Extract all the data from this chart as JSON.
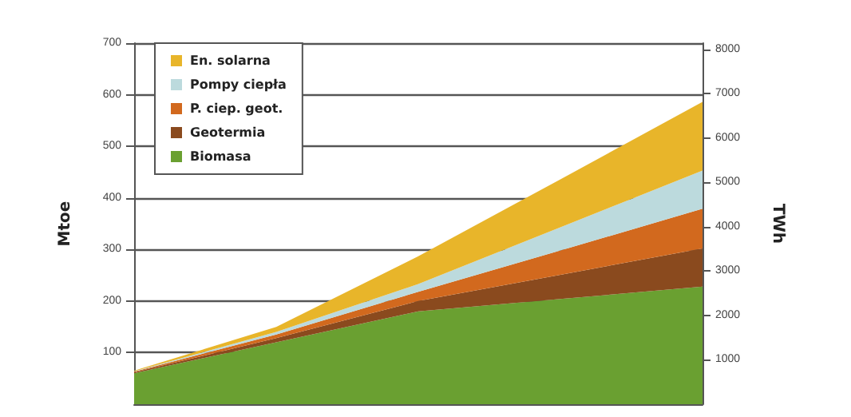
{
  "chart_data": {
    "type": "area",
    "stacked": true,
    "ylabel": "Mtoe",
    "y2label": "TWh",
    "categories": [
      null,
      null,
      null,
      null,
      null
    ],
    "series": [
      {
        "name": "Biomasa",
        "color": "#6aa031",
        "values": [
          60,
          120,
          180,
          204,
          228
        ]
      },
      {
        "name": "Geotermia",
        "color": "#8a4a1e",
        "values": [
          2,
          8,
          20,
          47,
          74
        ]
      },
      {
        "name": "P. ciep. geot.",
        "color": "#d2691e",
        "values": [
          1,
          7,
          18,
          47,
          77
        ]
      },
      {
        "name": "Pompy ciepła",
        "color": "#bcdadd",
        "values": [
          1,
          5,
          15,
          45,
          74
        ]
      },
      {
        "name": "En. solarna",
        "color": "#e8b52a",
        "values": [
          1,
          10,
          54,
          93,
          133
        ]
      }
    ],
    "ylim": [
      0,
      700
    ],
    "yticks": [
      100,
      200,
      300,
      400,
      500,
      600,
      700
    ],
    "y2lim": [
      0,
      8141
    ],
    "y2ticks": [
      1000,
      2000,
      3000,
      4000,
      5000,
      6000,
      7000,
      8000
    ],
    "grid": "y",
    "legend": "top left"
  }
}
